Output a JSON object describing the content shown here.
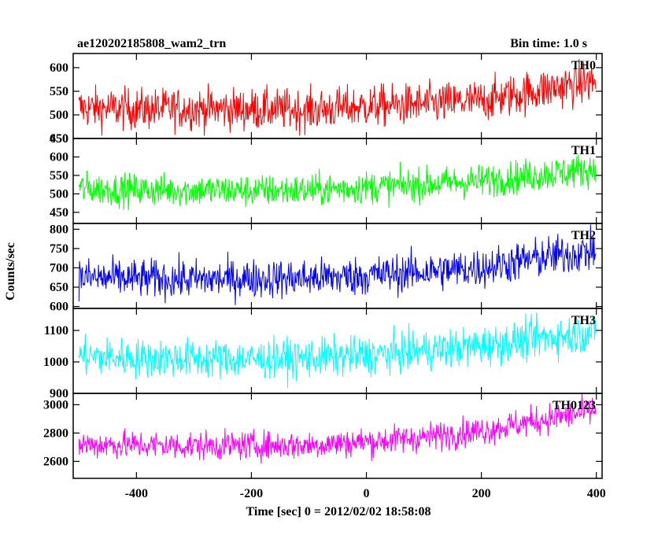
{
  "header": {
    "title": "ae120202185808_wam2_trn",
    "bin_time": "Bin time: 1.0 s"
  },
  "chart_data": {
    "type": "line",
    "title": "ae120202185808_wam2_trn",
    "xlabel": "Time [sec] 0 = 2012/02/02 18:58:08",
    "ylabel": "Counts/sec",
    "xlim": [
      -510,
      410
    ],
    "x_ticks": [
      -400,
      -200,
      0,
      200,
      400
    ],
    "grid": false,
    "panels": [
      {
        "name": "TH0",
        "color": "#ff0000",
        "ylim": [
          450,
          630
        ],
        "y_ticks": [
          450,
          500,
          550,
          600
        ],
        "x": [
          -500,
          -400,
          -300,
          -200,
          -100,
          0,
          100,
          200,
          300,
          400
        ],
        "values": [
          515,
          512,
          513,
          512,
          510,
          518,
          522,
          530,
          552,
          572
        ]
      },
      {
        "name": "TH1",
        "color": "#00ff00",
        "ylim": [
          420,
          650
        ],
        "y_ticks": [
          450,
          500,
          550,
          600,
          650
        ],
        "x": [
          -500,
          -400,
          -300,
          -200,
          -100,
          0,
          100,
          200,
          300,
          400
        ],
        "values": [
          515,
          510,
          510,
          508,
          510,
          518,
          525,
          535,
          552,
          568
        ]
      },
      {
        "name": "TH2",
        "color": "#0000ff",
        "ylim": [
          595,
          815
        ],
        "y_ticks": [
          600,
          650,
          700,
          750,
          800
        ],
        "x": [
          -500,
          -400,
          -300,
          -200,
          -100,
          0,
          100,
          200,
          300,
          400
        ],
        "values": [
          675,
          672,
          670,
          672,
          673,
          680,
          690,
          700,
          725,
          745
        ]
      },
      {
        "name": "TH3",
        "color": "#00ffff",
        "ylim": [
          900,
          1170
        ],
        "y_ticks": [
          900,
          1000,
          1100
        ],
        "x": [
          -500,
          -400,
          -300,
          -200,
          -100,
          0,
          100,
          200,
          300,
          400
        ],
        "values": [
          1018,
          1012,
          1010,
          1008,
          1012,
          1020,
          1035,
          1050,
          1075,
          1095
        ]
      },
      {
        "name": "TH0123",
        "color": "#ff00ff",
        "ylim": [
          2480,
          3080
        ],
        "y_ticks": [
          2600,
          2800,
          3000
        ],
        "x": [
          -500,
          -400,
          -300,
          -200,
          -100,
          0,
          100,
          200,
          300,
          400
        ],
        "values": [
          2720,
          2715,
          2710,
          2712,
          2715,
          2738,
          2770,
          2815,
          2890,
          2960
        ]
      }
    ]
  }
}
